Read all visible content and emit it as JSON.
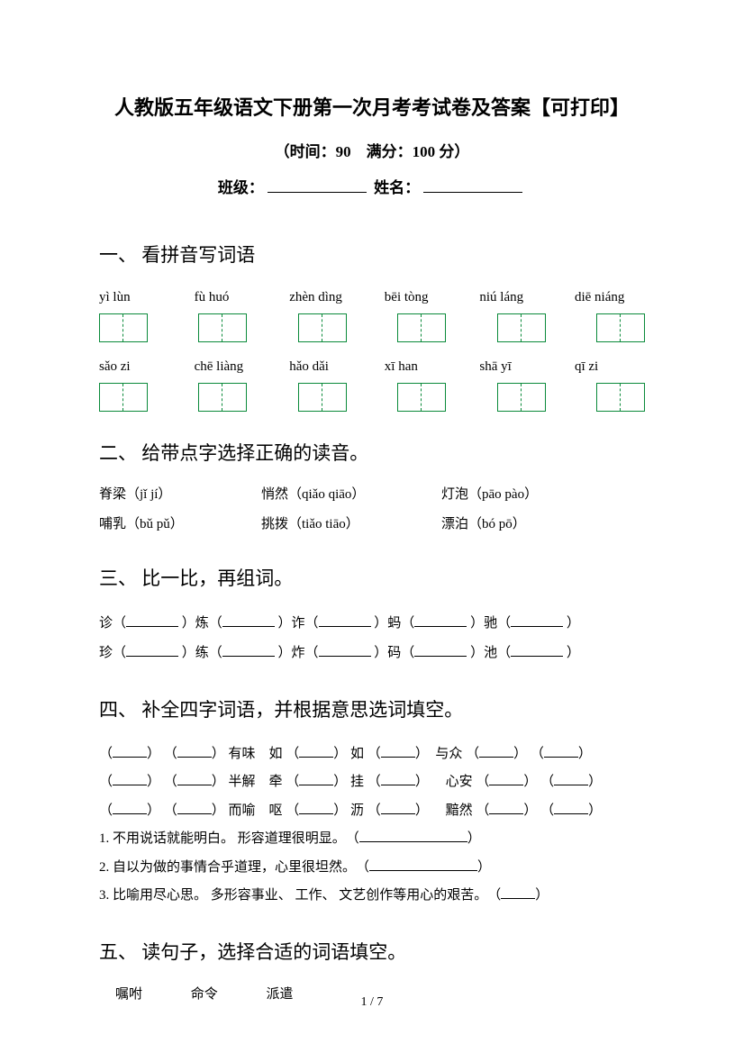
{
  "title": "人教版五年级语文下册第一次月考考试卷及答案【可打印】",
  "subtitle": "（时间：90　满分：100 分）",
  "info_labels": {
    "class": "班级：",
    "name": "姓名："
  },
  "sections": {
    "s1": "一、 看拼音写词语",
    "s2": "二、 给带点字选择正确的读音。",
    "s3": "三、 比一比，再组词。",
    "s4": "四、 补全四字词语，并根据意思选词填空。",
    "s5": "五、 读句子，选择合适的词语填空。"
  },
  "q1": {
    "row1": [
      "yì lùn",
      "fù huó",
      "zhèn dìng",
      "bēi tòng",
      "niú láng",
      "diē niáng"
    ],
    "row2": [
      "sǎo zi",
      "chē liàng",
      "hǎo dǎi",
      "xī han",
      "shā yī",
      "qī zi"
    ],
    "box_color": "#0a8a3a",
    "cells_per_box": 2
  },
  "q2": {
    "items": [
      {
        "chars": "脊梁",
        "pinyin": "（jǐ jí）"
      },
      {
        "chars": "悄然",
        "pinyin": "（qiǎo qiāo）"
      },
      {
        "chars": "灯泡",
        "pinyin": "（pāo pào）"
      },
      {
        "chars": "哺乳",
        "pinyin": "（bǔ pǔ）"
      },
      {
        "chars": "挑拨",
        "pinyin": "（tiǎo tiāo）"
      },
      {
        "chars": "漂泊",
        "pinyin": "（bó pō）"
      }
    ]
  },
  "q3": {
    "line1": [
      "诊（",
      "）炼（",
      "）诈（",
      "）蚂（",
      "）驰（",
      "）"
    ],
    "line2": [
      "珍（",
      "）练（",
      "）炸（",
      "）码（",
      "）池（",
      "）"
    ]
  },
  "q4": {
    "rows": [
      "（＿） （＿） 有味　如 （＿） 如 （＿） 与众 （＿） （＿）",
      "（＿） （＿） 半解　牵 （＿） 挂 （＿） 　心安 （＿） （＿）",
      "（＿） （＿） 而喻　呕 （＿） 沥 （＿） 　黯然 （＿） （＿）"
    ],
    "fill": [
      "1. 不用说话就能明白。 形容道理很明显。　（",
      "2. 自以为做的事情合乎道理，心里很坦然。　（",
      "3. 比喻用尽心思。 多形容事业、 工作、 文艺创作等用心的艰苦。　（"
    ]
  },
  "q5": {
    "words": [
      "嘱咐",
      "命令",
      "派遣"
    ]
  },
  "page_number": "1 / 7"
}
